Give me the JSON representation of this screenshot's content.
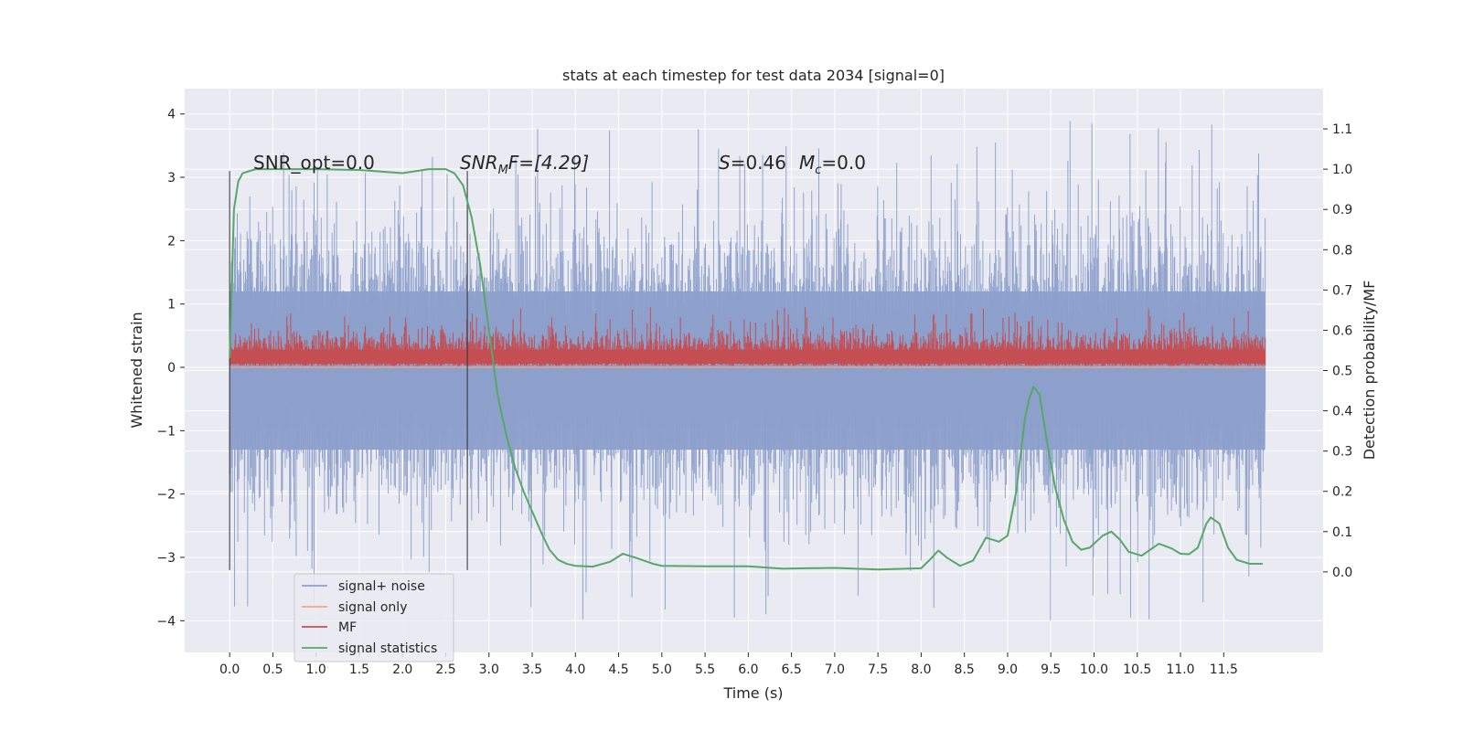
{
  "chart_data": {
    "type": "line",
    "title": "stats at each timestep for test data 2034 [signal=0]",
    "xlabel": "Time (s)",
    "ylabel": "Whitened strain",
    "y2label": "Detection probability/MF",
    "xlim": [
      -0.52,
      12.65
    ],
    "ylim": [
      -4.5,
      4.4
    ],
    "y2lim": [
      -0.2,
      1.2
    ],
    "x_ticks": [
      "0.0",
      "0.5",
      "1.0",
      "1.5",
      "2.0",
      "2.5",
      "3.0",
      "3.5",
      "4.0",
      "4.5",
      "5.0",
      "5.5",
      "6.0",
      "6.5",
      "7.0",
      "7.5",
      "8.0",
      "8.5",
      "9.0",
      "9.5",
      "10.0",
      "10.5",
      "11.0",
      "11.5"
    ],
    "y_ticks": [
      "4",
      "3",
      "2",
      "1",
      "0",
      "−1",
      "−2",
      "−3",
      "−4"
    ],
    "y2_ticks": [
      "1.1",
      "1.0",
      "0.9",
      "0.8",
      "0.7",
      "0.6",
      "0.5",
      "0.4",
      "0.3",
      "0.2",
      "0.1",
      "0.0"
    ],
    "grid": true,
    "legend_position": "lower-left",
    "series": [
      {
        "name": "signal+ noise",
        "axis": "left",
        "color": "#8da0cb",
        "kind": "noise-band",
        "x_range": [
          0.0,
          11.98
        ],
        "envelope_typical": [
          -2.0,
          2.3
        ],
        "extremes": [
          -4.1,
          4.0
        ]
      },
      {
        "name": "signal only",
        "axis": "left",
        "color": "#f4a582",
        "kind": "flat",
        "values": [
          0.0
        ]
      },
      {
        "name": "MF",
        "axis": "left",
        "color": "#c44e52",
        "kind": "noise-band",
        "x_range": [
          0.0,
          11.98
        ],
        "envelope_typical": [
          0.0,
          0.55
        ],
        "extremes": [
          0.0,
          1.0
        ]
      },
      {
        "name": "signal statistics",
        "axis": "right",
        "color": "#55a868",
        "kind": "line",
        "x": [
          0.0,
          0.05,
          0.1,
          0.15,
          0.3,
          0.5,
          1.0,
          1.5,
          2.0,
          2.3,
          2.5,
          2.6,
          2.7,
          2.8,
          2.9,
          3.0,
          3.05,
          3.1,
          3.2,
          3.3,
          3.4,
          3.5,
          3.6,
          3.7,
          3.8,
          3.9,
          4.0,
          4.2,
          4.4,
          4.55,
          4.7,
          4.9,
          5.0,
          5.5,
          6.0,
          6.4,
          7.0,
          7.5,
          8.0,
          8.1,
          8.2,
          8.3,
          8.45,
          8.6,
          8.75,
          8.9,
          9.0,
          9.1,
          9.2,
          9.25,
          9.3,
          9.37,
          9.45,
          9.55,
          9.65,
          9.75,
          9.85,
          9.95,
          10.1,
          10.2,
          10.3,
          10.4,
          10.55,
          10.75,
          10.9,
          11.0,
          11.1,
          11.2,
          11.3,
          11.35,
          11.45,
          11.55,
          11.65,
          11.8,
          11.95
        ],
        "values": [
          0.53,
          0.9,
          0.97,
          0.99,
          1.0,
          1.0,
          1.0,
          0.998,
          0.99,
          1.0,
          1.0,
          0.99,
          0.96,
          0.88,
          0.76,
          0.6,
          0.52,
          0.44,
          0.34,
          0.26,
          0.2,
          0.15,
          0.1,
          0.055,
          0.03,
          0.02,
          0.015,
          0.013,
          0.025,
          0.045,
          0.035,
          0.02,
          0.015,
          0.014,
          0.014,
          0.008,
          0.01,
          0.006,
          0.009,
          0.03,
          0.053,
          0.035,
          0.015,
          0.028,
          0.085,
          0.075,
          0.09,
          0.2,
          0.38,
          0.43,
          0.46,
          0.44,
          0.33,
          0.21,
          0.13,
          0.075,
          0.055,
          0.06,
          0.09,
          0.1,
          0.08,
          0.05,
          0.04,
          0.07,
          0.058,
          0.045,
          0.044,
          0.06,
          0.12,
          0.135,
          0.12,
          0.06,
          0.03,
          0.02,
          0.02
        ]
      }
    ],
    "vlines": [
      0.0,
      2.75
    ],
    "annotations": [
      {
        "text": "SNR_opt=0.0",
        "x": 0.2,
        "y": 3.15
      },
      {
        "text": "SNR_MF=[4.29]",
        "x": 2.6,
        "y": 3.15
      },
      {
        "text": "S=0.46   M_c=0.0",
        "x": 5.6,
        "y": 3.15
      }
    ]
  },
  "labels": {
    "title": "stats at each timestep for test data 2034 [signal=0]",
    "xlabel": "Time (s)",
    "ylabel": "Whitened strain",
    "y2label": "Detection probability/MF",
    "annot1": "SNR_opt=0.0",
    "annot2_s": "SNR",
    "annot2_sub": "M",
    "annot2_rest": "F=[4.29]",
    "annot3_s": "S",
    "annot3_a": "=0.46",
    "annot3_m": "M",
    "annot3_sub": "c",
    "annot3_b": "=0.0",
    "legend": [
      "signal+ noise",
      "signal only",
      "MF",
      "signal statistics"
    ]
  }
}
